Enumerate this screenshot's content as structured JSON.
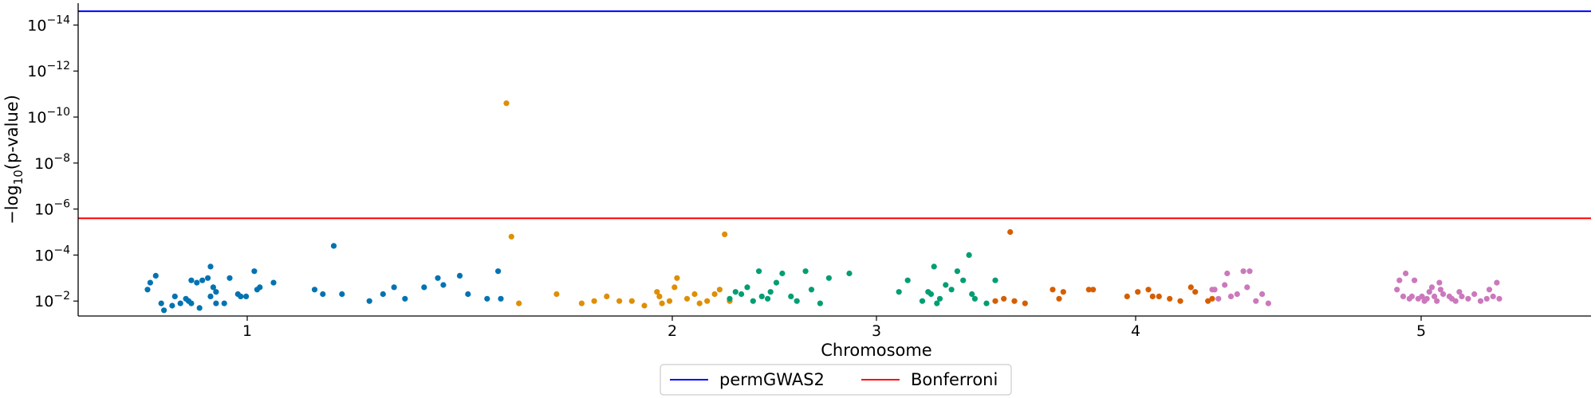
{
  "chart_data": {
    "type": "scatter",
    "title": "",
    "xlabel": "Chromosome",
    "ylabel_parts": {
      "prefix": "−log",
      "sub": "10",
      "suffix": "(p-value)"
    },
    "x_ticks": [
      {
        "label": "1",
        "pos": 1.0
      },
      {
        "label": "2",
        "pos": 2.0
      },
      {
        "label": "3",
        "pos": 3.0
      },
      {
        "label": "4",
        "pos": 4.0
      },
      {
        "label": "5",
        "pos": 5.0
      }
    ],
    "y_ticks": [
      {
        "base": "10",
        "exp": "−14",
        "value": 14
      },
      {
        "base": "10",
        "exp": "−12",
        "value": 12
      },
      {
        "base": "10",
        "exp": "−10",
        "value": 10
      },
      {
        "base": "10",
        "exp": "−8",
        "value": 8
      },
      {
        "base": "10",
        "exp": "−6",
        "value": 6
      },
      {
        "base": "10",
        "exp": "−4",
        "value": 4
      },
      {
        "base": "10",
        "exp": "−2",
        "value": 2
      }
    ],
    "ylim": [
      1.35,
      14.95
    ],
    "y_scale": "log (inverted, -log10 p-value)",
    "thresholds": [
      {
        "name": "permGWAS2",
        "color": "#0000ff",
        "value": 14.6
      },
      {
        "name": "Bonferroni",
        "color": "#ff0000",
        "value": 5.6
      }
    ],
    "legend": {
      "placement": "bottom-center",
      "entries": [
        "permGWAS2",
        "Bonferroni"
      ]
    },
    "series": [
      {
        "chromosome": "1",
        "color": "#0173b2",
        "points": [
          [
            0.74,
            2.5
          ],
          [
            0.75,
            2.8
          ],
          [
            0.77,
            3.1
          ],
          [
            0.79,
            1.9
          ],
          [
            0.8,
            1.6
          ],
          [
            0.83,
            1.8
          ],
          [
            0.84,
            2.2
          ],
          [
            0.86,
            1.9
          ],
          [
            0.88,
            2.1
          ],
          [
            0.89,
            2.0
          ],
          [
            0.9,
            2.9
          ],
          [
            0.9,
            1.9
          ],
          [
            0.92,
            2.8
          ],
          [
            0.93,
            1.7
          ],
          [
            0.94,
            2.9
          ],
          [
            0.96,
            3.0
          ],
          [
            0.97,
            2.2
          ],
          [
            0.97,
            3.5
          ],
          [
            0.98,
            2.6
          ],
          [
            0.99,
            1.9
          ],
          [
            0.99,
            2.4
          ],
          [
            1.02,
            1.9
          ],
          [
            1.04,
            3.0
          ],
          [
            1.07,
            2.3
          ],
          [
            1.08,
            2.2
          ],
          [
            1.1,
            2.2
          ],
          [
            1.13,
            3.3
          ],
          [
            1.14,
            2.5
          ],
          [
            1.15,
            2.6
          ],
          [
            1.2,
            2.8
          ],
          [
            1.35,
            2.5
          ],
          [
            1.38,
            2.3
          ],
          [
            1.42,
            4.4
          ],
          [
            1.45,
            2.3
          ],
          [
            1.55,
            2.0
          ],
          [
            1.6,
            2.3
          ],
          [
            1.64,
            2.6
          ],
          [
            1.68,
            2.1
          ],
          [
            1.75,
            2.6
          ],
          [
            1.8,
            3.0
          ],
          [
            1.82,
            2.7
          ],
          [
            1.88,
            3.1
          ],
          [
            1.91,
            2.3
          ],
          [
            1.98,
            2.1
          ],
          [
            2.02,
            3.3
          ],
          [
            2.03,
            2.1
          ]
        ]
      },
      {
        "chromosome": "2",
        "color": "#de8f05",
        "points": [
          [
            1.95,
            10.6
          ],
          [
            1.97,
            4.8
          ],
          [
            2.0,
            1.9
          ],
          [
            2.15,
            2.3
          ],
          [
            2.25,
            1.9
          ],
          [
            2.3,
            2.0
          ],
          [
            2.35,
            2.2
          ],
          [
            2.4,
            2.0
          ],
          [
            2.45,
            2.0
          ],
          [
            2.5,
            1.8
          ],
          [
            2.55,
            2.4
          ],
          [
            2.56,
            2.2
          ],
          [
            2.57,
            1.9
          ],
          [
            2.6,
            2.0
          ],
          [
            2.62,
            2.6
          ],
          [
            2.63,
            3.0
          ],
          [
            2.67,
            2.1
          ],
          [
            2.7,
            2.3
          ],
          [
            2.72,
            1.9
          ],
          [
            2.75,
            2.0
          ],
          [
            2.78,
            2.3
          ],
          [
            2.8,
            2.5
          ],
          [
            2.82,
            4.9
          ],
          [
            2.84,
            2.0
          ]
        ]
      },
      {
        "chromosome": "3",
        "color": "#029e73",
        "points": [
          [
            2.84,
            2.1
          ],
          [
            2.86,
            2.4
          ],
          [
            2.88,
            2.3
          ],
          [
            2.9,
            2.6
          ],
          [
            2.92,
            2.0
          ],
          [
            2.94,
            3.3
          ],
          [
            2.95,
            2.2
          ],
          [
            2.97,
            2.1
          ],
          [
            2.98,
            2.4
          ],
          [
            3.0,
            2.8
          ],
          [
            3.02,
            3.2
          ],
          [
            3.05,
            2.2
          ],
          [
            3.07,
            2.0
          ],
          [
            3.1,
            3.3
          ],
          [
            3.12,
            2.5
          ],
          [
            3.15,
            1.9
          ],
          [
            3.18,
            3.0
          ],
          [
            3.25,
            3.2
          ],
          [
            3.42,
            2.4
          ],
          [
            3.45,
            2.9
          ],
          [
            3.5,
            2.0
          ],
          [
            3.52,
            2.4
          ],
          [
            3.53,
            2.3
          ],
          [
            3.54,
            3.5
          ],
          [
            3.55,
            1.9
          ],
          [
            3.56,
            2.1
          ],
          [
            3.58,
            2.7
          ],
          [
            3.6,
            2.5
          ],
          [
            3.62,
            3.3
          ],
          [
            3.64,
            2.9
          ],
          [
            3.66,
            4.0
          ],
          [
            3.67,
            2.3
          ],
          [
            3.68,
            2.1
          ],
          [
            3.72,
            1.9
          ],
          [
            3.75,
            2.9
          ]
        ]
      },
      {
        "chromosome": "4",
        "color": "#d55e00",
        "points": [
          [
            3.78,
            2.0
          ],
          [
            3.82,
            2.1
          ],
          [
            3.85,
            5.0
          ],
          [
            3.87,
            2.0
          ],
          [
            3.92,
            1.9
          ],
          [
            4.05,
            2.5
          ],
          [
            4.08,
            2.1
          ],
          [
            4.1,
            2.4
          ],
          [
            4.22,
            2.5
          ],
          [
            4.24,
            2.5
          ],
          [
            4.4,
            2.2
          ],
          [
            4.45,
            2.4
          ],
          [
            4.5,
            2.5
          ],
          [
            4.52,
            2.2
          ],
          [
            4.55,
            2.2
          ],
          [
            4.6,
            2.1
          ],
          [
            4.65,
            2.0
          ],
          [
            4.7,
            2.6
          ],
          [
            4.72,
            2.4
          ],
          [
            4.78,
            2.0
          ],
          [
            4.8,
            2.1
          ]
        ]
      },
      {
        "chromosome": "5",
        "color": "#cc78bc",
        "points": [
          [
            4.8,
            2.5
          ],
          [
            4.82,
            2.5
          ],
          [
            4.85,
            2.1
          ],
          [
            4.9,
            2.7
          ],
          [
            4.92,
            3.2
          ],
          [
            4.95,
            2.2
          ],
          [
            5.0,
            2.3
          ],
          [
            5.05,
            3.3
          ],
          [
            5.08,
            2.6
          ],
          [
            5.1,
            3.3
          ],
          [
            5.15,
            2.0
          ],
          [
            5.2,
            2.3
          ],
          [
            5.25,
            1.9
          ],
          [
            6.28,
            2.5
          ],
          [
            6.3,
            2.9
          ],
          [
            6.33,
            2.2
          ],
          [
            6.35,
            3.2
          ],
          [
            6.38,
            2.1
          ],
          [
            6.4,
            2.2
          ],
          [
            6.42,
            2.9
          ],
          [
            6.45,
            2.1
          ],
          [
            6.48,
            2.2
          ],
          [
            6.5,
            2.0
          ],
          [
            6.52,
            2.1
          ],
          [
            6.54,
            2.4
          ],
          [
            6.56,
            2.6
          ],
          [
            6.58,
            2.2
          ],
          [
            6.6,
            2.0
          ],
          [
            6.62,
            2.8
          ],
          [
            6.63,
            2.5
          ],
          [
            6.65,
            2.3
          ],
          [
            6.7,
            2.2
          ],
          [
            6.72,
            2.1
          ],
          [
            6.75,
            2.0
          ],
          [
            6.78,
            2.4
          ],
          [
            6.8,
            2.2
          ],
          [
            6.85,
            2.1
          ],
          [
            6.9,
            2.3
          ],
          [
            6.95,
            2.0
          ],
          [
            7.0,
            2.1
          ],
          [
            7.02,
            2.5
          ],
          [
            7.05,
            2.2
          ],
          [
            7.08,
            2.8
          ],
          [
            7.1,
            2.1
          ]
        ]
      }
    ]
  }
}
